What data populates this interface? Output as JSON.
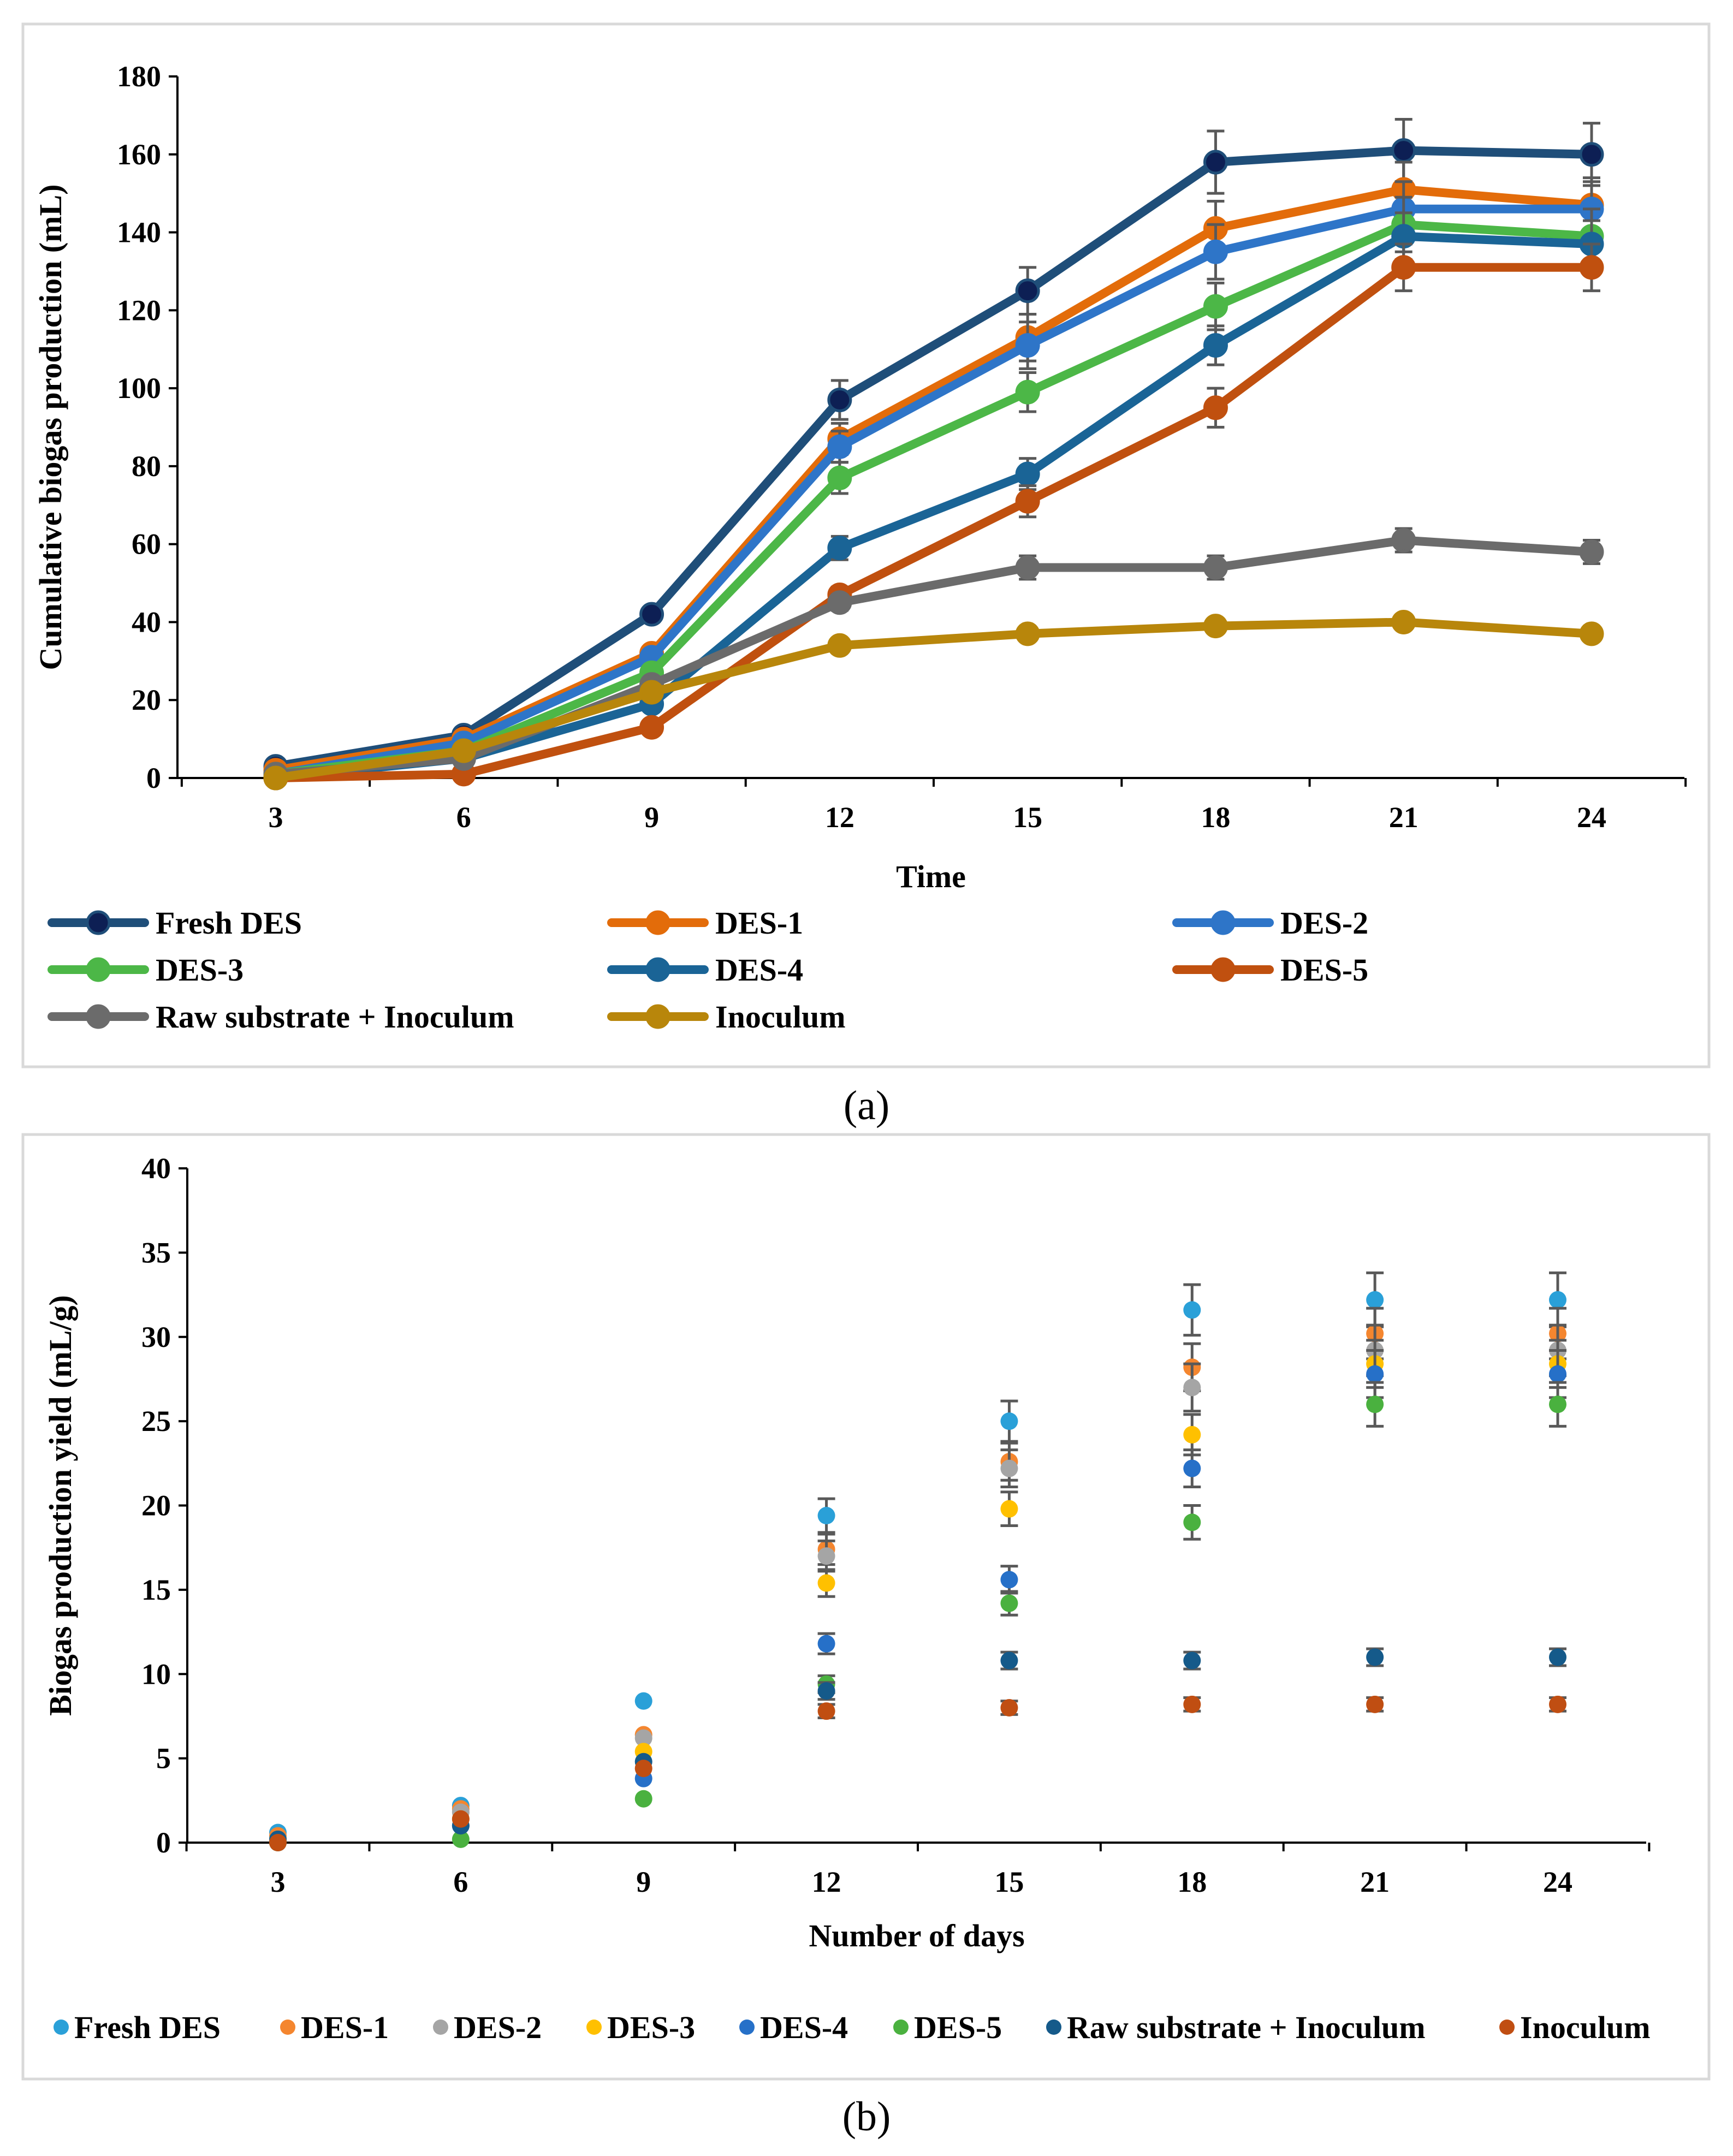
{
  "chart_data": [
    {
      "type": "line",
      "panel_label": "(a)",
      "x": [
        3,
        6,
        9,
        12,
        15,
        18,
        21,
        24
      ],
      "xlabel": "Time",
      "ylabel": "Cumulative  biogas production (mL)",
      "ylim": [
        0,
        180
      ],
      "yticks": [
        "0",
        "20",
        "40",
        "60",
        "80",
        "100",
        "120",
        "140",
        "160",
        "180"
      ],
      "xticks": [
        "3",
        "6",
        "9",
        "12",
        "15",
        "18",
        "21",
        "24"
      ],
      "error_bars": true,
      "legend_position": "bottom",
      "series": [
        {
          "name": "Fresh DES",
          "color": "#1F4E79",
          "marker_fill": "#0D1F54",
          "values": [
            3,
            11,
            42,
            97,
            125,
            158,
            161,
            160
          ],
          "errors": [
            0,
            0,
            0,
            5,
            6,
            8,
            8,
            8
          ]
        },
        {
          "name": "DES-1",
          "color": "#E36C0A",
          "values": [
            2,
            10,
            32,
            87,
            113,
            141,
            151,
            147
          ],
          "errors": [
            0,
            0,
            0,
            4,
            6,
            7,
            7,
            7
          ]
        },
        {
          "name": "DES-2",
          "color": "#2E75C8",
          "values": [
            1,
            9,
            31,
            85,
            111,
            135,
            146,
            146
          ],
          "errors": [
            0,
            0,
            0,
            4,
            6,
            7,
            7,
            7
          ]
        },
        {
          "name": "DES-3",
          "color": "#4CB747",
          "values": [
            1,
            7,
            27,
            77,
            99,
            121,
            142,
            139
          ],
          "errors": [
            0,
            0,
            0,
            4,
            5,
            6,
            7,
            7
          ]
        },
        {
          "name": "DES-4",
          "color": "#1A6496",
          "values": [
            0,
            5,
            19,
            59,
            78,
            111,
            139,
            137
          ],
          "errors": [
            0,
            0,
            0,
            3,
            4,
            5,
            6,
            6
          ]
        },
        {
          "name": "DES-5",
          "color": "#C0500F",
          "values": [
            0,
            1,
            13,
            47,
            71,
            95,
            131,
            131
          ],
          "errors": [
            0,
            0,
            0,
            2,
            4,
            5,
            6,
            6
          ]
        },
        {
          "name": "Raw substrate + Inoculum",
          "color": "#6B6B6B",
          "values": [
            1,
            5,
            24,
            45,
            54,
            54,
            61,
            58
          ],
          "errors": [
            0,
            0,
            0,
            2,
            3,
            3,
            3,
            3
          ]
        },
        {
          "name": "Inoculum",
          "color": "#B8860B",
          "values": [
            0,
            7,
            22,
            34,
            37,
            39,
            40,
            37
          ],
          "errors": [
            0,
            0,
            0,
            1,
            1,
            1,
            1,
            1
          ]
        }
      ]
    },
    {
      "type": "scatter",
      "panel_label": "(b)",
      "x": [
        3,
        6,
        9,
        12,
        15,
        18,
        21,
        24
      ],
      "xlabel": "Number of days",
      "ylabel": "Biogas production yield (mL/g)",
      "ylim": [
        0,
        40
      ],
      "yticks": [
        "0",
        "5",
        "10",
        "15",
        "20",
        "25",
        "30",
        "35",
        "40"
      ],
      "xticks": [
        "3",
        "6",
        "9",
        "12",
        "15",
        "18",
        "21",
        "24"
      ],
      "error_bars": true,
      "legend_position": "bottom",
      "series": [
        {
          "name": "Fresh DES",
          "color": "#2AA0D8",
          "values": [
            0.6,
            2.2,
            8.4,
            19.4,
            25.0,
            31.6,
            32.2,
            32.2
          ],
          "errors": [
            0,
            0,
            0,
            1,
            1.2,
            1.5,
            1.6,
            1.6
          ]
        },
        {
          "name": "DES-1",
          "color": "#F4862F",
          "values": [
            0.4,
            2.0,
            6.4,
            17.4,
            22.6,
            28.2,
            30.2,
            30.2
          ],
          "errors": [
            0,
            0,
            0,
            0.9,
            1.1,
            1.4,
            1.5,
            1.5
          ]
        },
        {
          "name": "DES-2",
          "color": "#A5A5A5",
          "values": [
            0.2,
            1.8,
            6.2,
            17.0,
            22.2,
            27.0,
            29.2,
            29.2
          ],
          "errors": [
            0,
            0,
            0,
            0.9,
            1.1,
            1.4,
            1.5,
            1.5
          ]
        },
        {
          "name": "DES-3",
          "color": "#FFC000",
          "values": [
            0.2,
            1.4,
            5.4,
            15.4,
            19.8,
            24.2,
            28.4,
            28.4
          ],
          "errors": [
            0,
            0,
            0,
            0.8,
            1.0,
            1.2,
            1.4,
            1.4
          ]
        },
        {
          "name": "DES-4",
          "color": "#2670C8",
          "values": [
            0,
            1.0,
            3.8,
            11.8,
            15.6,
            22.2,
            27.8,
            27.8
          ],
          "errors": [
            0,
            0,
            0,
            0.6,
            0.8,
            1.1,
            1.4,
            1.4
          ]
        },
        {
          "name": "DES-5",
          "color": "#4AB13F",
          "values": [
            0,
            0.2,
            2.6,
            9.4,
            14.2,
            19.0,
            26.0,
            26.0
          ],
          "errors": [
            0,
            0,
            0,
            0.5,
            0.7,
            1.0,
            1.3,
            1.3
          ]
        },
        {
          "name": "Raw substrate + Inoculum",
          "color": "#155A8A",
          "values": [
            0.2,
            1.0,
            4.8,
            9.0,
            10.8,
            10.8,
            11.0,
            11.0
          ],
          "errors": [
            0,
            0,
            0,
            0.5,
            0.5,
            0.5,
            0.5,
            0.5
          ]
        },
        {
          "name": "Inoculum",
          "color": "#C04E12",
          "values": [
            0,
            1.4,
            4.4,
            7.8,
            8.0,
            8.2,
            8.2,
            8.2
          ],
          "errors": [
            0,
            0,
            0,
            0.4,
            0.4,
            0.4,
            0.4,
            0.4
          ]
        }
      ]
    }
  ]
}
